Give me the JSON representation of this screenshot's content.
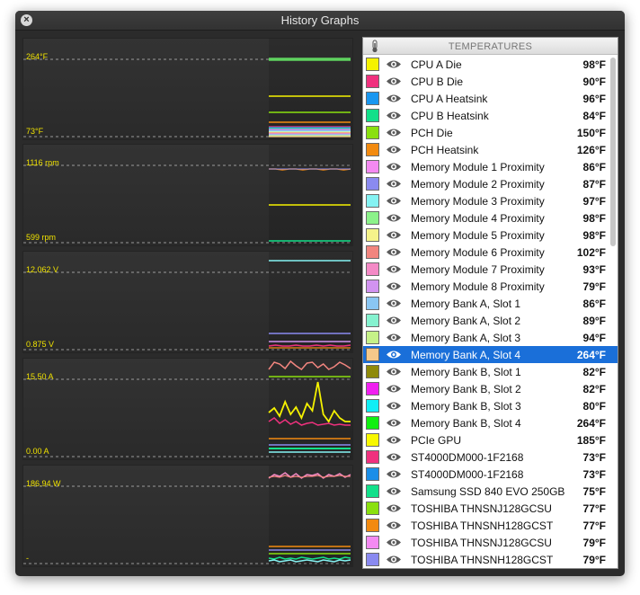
{
  "window": {
    "title": "History Graphs"
  },
  "graphs": [
    {
      "id": "temperature",
      "top_label": "264°F",
      "bottom_label": "73°F"
    },
    {
      "id": "fan",
      "top_label": "1116 rpm",
      "bottom_label": "599 rpm"
    },
    {
      "id": "voltage",
      "top_label": "12.062 V",
      "bottom_label": "0.875 V"
    },
    {
      "id": "current",
      "top_label": "15.50 A",
      "bottom_label": "0.00 A"
    },
    {
      "id": "power",
      "top_label": "186.94 W",
      "bottom_label": "-"
    }
  ],
  "panel": {
    "header": "TEMPERATURES",
    "icon": "thermometer-icon",
    "selected_index": 17,
    "rows": [
      {
        "name": "CPU A Die",
        "value": "98°F",
        "color": "#f5f200"
      },
      {
        "name": "CPU B Die",
        "value": "90°F",
        "color": "#f0317e"
      },
      {
        "name": "CPU A Heatsink",
        "value": "96°F",
        "color": "#1a97f0"
      },
      {
        "name": "CPU B Heatsink",
        "value": "84°F",
        "color": "#13e08a"
      },
      {
        "name": "PCH Die",
        "value": "150°F",
        "color": "#8ae00f"
      },
      {
        "name": "PCH Heatsink",
        "value": "126°F",
        "color": "#f28a10"
      },
      {
        "name": "Memory Module 1 Proximity",
        "value": "86°F",
        "color": "#f48af2"
      },
      {
        "name": "Memory Module 2 Proximity",
        "value": "87°F",
        "color": "#8a8af0"
      },
      {
        "name": "Memory Module 3 Proximity",
        "value": "97°F",
        "color": "#85f3f3"
      },
      {
        "name": "Memory Module 4 Proximity",
        "value": "98°F",
        "color": "#8cf28a"
      },
      {
        "name": "Memory Module 5 Proximity",
        "value": "98°F",
        "color": "#f5f38a"
      },
      {
        "name": "Memory Module 6 Proximity",
        "value": "102°F",
        "color": "#f2857f"
      },
      {
        "name": "Memory Module 7 Proximity",
        "value": "93°F",
        "color": "#f48ac6"
      },
      {
        "name": "Memory Module 8 Proximity",
        "value": "79°F",
        "color": "#d293f0"
      },
      {
        "name": "Memory Bank A, Slot 1",
        "value": "86°F",
        "color": "#8ac6f3"
      },
      {
        "name": "Memory Bank A, Slot 2",
        "value": "89°F",
        "color": "#85f2cf"
      },
      {
        "name": "Memory Bank A, Slot 3",
        "value": "94°F",
        "color": "#c6f288"
      },
      {
        "name": "Memory Bank A, Slot 4",
        "value": "264°F",
        "color": "#f5c88a"
      },
      {
        "name": "Memory Bank B, Slot 1",
        "value": "82°F",
        "color": "#8f8a0a"
      },
      {
        "name": "Memory Bank B, Slot 2",
        "value": "82°F",
        "color": "#f020f0"
      },
      {
        "name": "Memory Bank B, Slot 3",
        "value": "80°F",
        "color": "#10eef5"
      },
      {
        "name": "Memory Bank B, Slot 4",
        "value": "264°F",
        "color": "#10f010"
      },
      {
        "name": "PCIe GPU",
        "value": "185°F",
        "color": "#f8f800"
      },
      {
        "name": "ST4000DM000-1F2168",
        "value": "73°F",
        "color": "#f0317e"
      },
      {
        "name": "ST4000DM000-1F2168",
        "value": "73°F",
        "color": "#1a8ee8"
      },
      {
        "name": "Samsung SSD 840 EVO 250GB",
        "value": "75°F",
        "color": "#13e08a"
      },
      {
        "name": "TOSHIBA THNSNJ128GCSU",
        "value": "77°F",
        "color": "#8ae00f"
      },
      {
        "name": "TOSHIBA THNSNH128GCST",
        "value": "77°F",
        "color": "#f28a10"
      },
      {
        "name": "TOSHIBA THNSNJ128GCSU",
        "value": "79°F",
        "color": "#f48af2"
      },
      {
        "name": "TOSHIBA THNSNH128GCST",
        "value": "79°F",
        "color": "#8a8af0"
      }
    ]
  }
}
